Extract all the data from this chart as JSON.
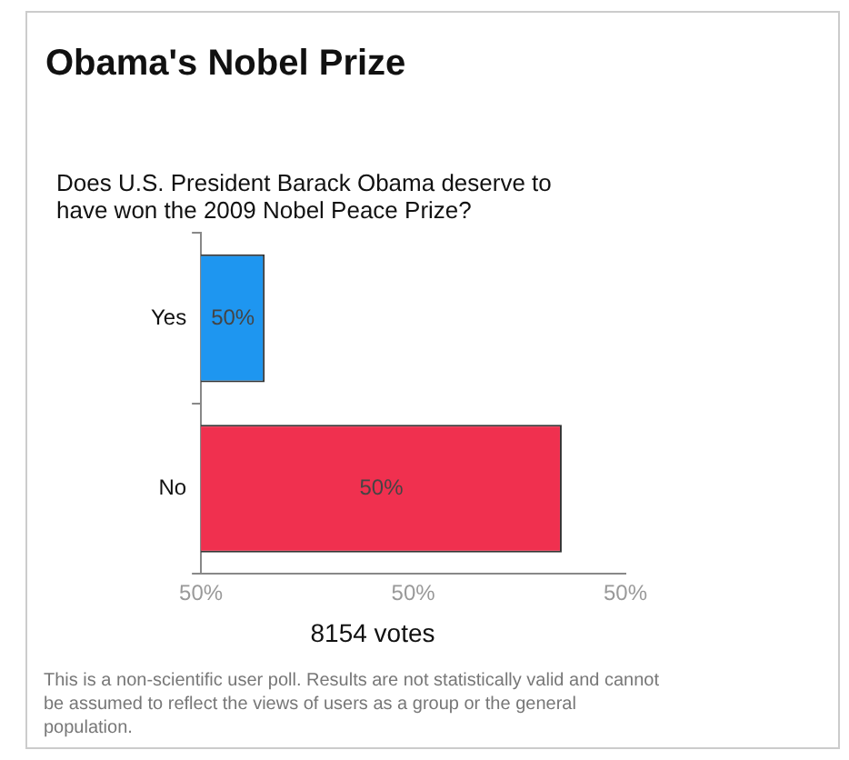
{
  "chart_data": {
    "type": "bar",
    "orientation": "horizontal",
    "title": "Obama's Nobel Prize",
    "subtitle": "Does U.S. President Barack Obama deserve to have won the 2009 Nobel Peace Prize?",
    "categories": [
      "Yes",
      "No"
    ],
    "values": [
      49.65,
      50.35
    ],
    "colors": [
      "#1e96f0",
      "#f0304f"
    ],
    "value_labels": [
      "50%",
      "50%"
    ],
    "xlim": [
      49.5,
      50.5
    ],
    "xticks": [
      {
        "value": 49.5,
        "label": "50%"
      },
      {
        "value": 50,
        "label": "50%"
      },
      {
        "value": 50.5,
        "label": "50%"
      }
    ],
    "grid": false,
    "legend": false,
    "annotations": [
      "8154 votes",
      "This is a non-scientific user poll. Results are not statistically valid and cannot be assumed to reflect the views of users as a group or the general population."
    ]
  }
}
